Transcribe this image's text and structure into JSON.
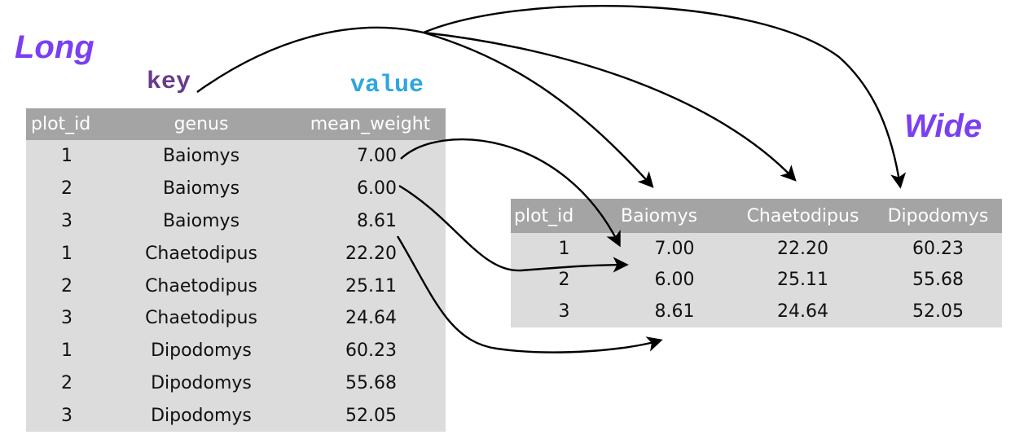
{
  "long": {
    "title": "Long",
    "key_label": "key",
    "value_label": "value",
    "headers": [
      "plot_id",
      "genus",
      "mean_weight"
    ],
    "rows": [
      [
        "1",
        "Baiomys",
        "7.00"
      ],
      [
        "2",
        "Baiomys",
        "6.00"
      ],
      [
        "3",
        "Baiomys",
        "8.61"
      ],
      [
        "1",
        "Chaetodipus",
        "22.20"
      ],
      [
        "2",
        "Chaetodipus",
        "25.11"
      ],
      [
        "3",
        "Chaetodipus",
        "24.64"
      ],
      [
        "1",
        "Dipodomys",
        "60.23"
      ],
      [
        "2",
        "Dipodomys",
        "55.68"
      ],
      [
        "3",
        "Dipodomys",
        "52.05"
      ]
    ]
  },
  "wide": {
    "title": "Wide",
    "headers": [
      "plot_id",
      "Baiomys",
      "Chaetodipus",
      "Dipodomys"
    ],
    "rows": [
      [
        "1",
        "7.00",
        "22.20",
        "60.23"
      ],
      [
        "2",
        "6.00",
        "25.11",
        "55.68"
      ],
      [
        "3",
        "8.61",
        "24.64",
        "52.05"
      ]
    ]
  },
  "colors": {
    "long_title": "#7b3ff2",
    "wide_title": "#7b3ff2",
    "key_label": "#6a3a8c",
    "value_label": "#2ea6df",
    "header_bg": "#a4a4a4",
    "body_bg": "#dcdcdc",
    "arrow": "#000000"
  }
}
